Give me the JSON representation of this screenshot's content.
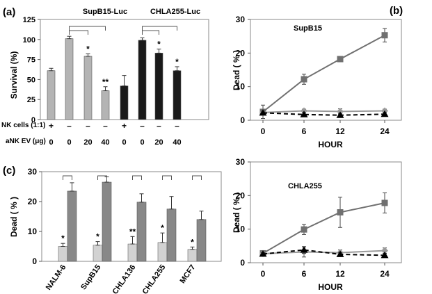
{
  "panels": [
    {
      "label": "(a)"
    },
    {
      "label": "(b)"
    },
    {
      "label": "(c)"
    }
  ],
  "chart_data": [
    {
      "panel": "(a)",
      "type": "bar",
      "groups": [
        "SupB15-Luc",
        "CHLA255-Luc"
      ],
      "ylabel": "Survival (%)",
      "ylim": [
        0,
        125
      ],
      "yticks": [
        0,
        25,
        50,
        75,
        100,
        125
      ],
      "row_labels": [
        "NK cells (1:1)",
        "aNK EV (μg)"
      ],
      "bars": [
        {
          "group": "SupB15-Luc",
          "nk": "+",
          "ev": "0",
          "value": 61,
          "err": 3,
          "color": "#b4b4b4",
          "sig": ""
        },
        {
          "group": "SupB15-Luc",
          "nk": "–",
          "ev": "0",
          "value": 101,
          "err": 3,
          "color": "#b4b4b4",
          "sig": ""
        },
        {
          "group": "SupB15-Luc",
          "nk": "–",
          "ev": "20",
          "value": 79,
          "err": 3,
          "color": "#b4b4b4",
          "sig": "*"
        },
        {
          "group": "SupB15-Luc",
          "nk": "–",
          "ev": "40",
          "value": 36,
          "err": 5,
          "color": "#b4b4b4",
          "sig": "**"
        },
        {
          "group": "CHLA255-Luc",
          "nk": "+",
          "ev": "0",
          "value": 42,
          "err": 13,
          "color": "#1a1a1a",
          "sig": ""
        },
        {
          "group": "CHLA255-Luc",
          "nk": "–",
          "ev": "0",
          "value": 99,
          "err": 3,
          "color": "#1a1a1a",
          "sig": ""
        },
        {
          "group": "CHLA255-Luc",
          "nk": "–",
          "ev": "20",
          "value": 83,
          "err": 5,
          "color": "#1a1a1a",
          "sig": "*"
        },
        {
          "group": "CHLA255-Luc",
          "nk": "–",
          "ev": "40",
          "value": 61,
          "err": 5,
          "color": "#1a1a1a",
          "sig": "*"
        }
      ],
      "brackets": [
        [
          1,
          2
        ],
        [
          1,
          3
        ],
        [
          5,
          6
        ],
        [
          5,
          7
        ]
      ]
    },
    {
      "panel": "(b)",
      "type": "line",
      "annotation": "SupB15",
      "xlabel": "HOUR",
      "ylabel": "Dead ( % )",
      "x": [
        0,
        6,
        12,
        24
      ],
      "ylim": [
        0,
        30
      ],
      "yticks": [
        0,
        10,
        20,
        30
      ],
      "series": [
        {
          "marker": "square",
          "color": "#707070",
          "dash": "",
          "values": [
            2.5,
            12.2,
            18.2,
            25.3
          ],
          "err": [
            2.0,
            1.5,
            0.5,
            2.0
          ]
        },
        {
          "marker": "diamond",
          "color": "#9a9a9a",
          "dash": "",
          "values": [
            2.3,
            2.8,
            2.6,
            2.8
          ],
          "err": [
            0.5,
            0.5,
            0.8,
            0.5
          ]
        },
        {
          "marker": "triangle",
          "color": "#000000",
          "dash": "6,4",
          "values": [
            2.2,
            1.7,
            1.5,
            1.8
          ],
          "err": [
            0.5,
            0.5,
            0.5,
            0.5
          ]
        }
      ]
    },
    {
      "panel": "(b)",
      "type": "line",
      "annotation": "CHLA255",
      "xlabel": "HOUR",
      "ylabel": "Dead ( % )",
      "x": [
        0,
        6,
        12,
        24
      ],
      "ylim": [
        0,
        30
      ],
      "yticks": [
        0,
        10,
        20,
        30
      ],
      "series": [
        {
          "marker": "square",
          "color": "#707070",
          "dash": "",
          "values": [
            2.8,
            9.9,
            15.0,
            17.8
          ],
          "err": [
            0.5,
            1.5,
            4.5,
            3.0
          ]
        },
        {
          "marker": "diamond",
          "color": "#9a9a9a",
          "dash": "",
          "values": [
            2.7,
            3.2,
            3.0,
            3.6
          ],
          "err": [
            0.4,
            1.5,
            0.8,
            0.8
          ]
        },
        {
          "marker": "triangle",
          "color": "#000000",
          "dash": "6,4",
          "values": [
            2.6,
            3.8,
            2.5,
            2.2
          ],
          "err": [
            0.4,
            1.0,
            0.5,
            0.5
          ]
        }
      ]
    },
    {
      "panel": "(c)",
      "type": "bar",
      "ylabel": "Dead  ( % )",
      "ylim": [
        0,
        30
      ],
      "yticks": [
        0,
        10,
        20,
        30
      ],
      "categories": [
        "NALM-6",
        "SupB15",
        "CHLA136",
        "CHLA255",
        "MCF7"
      ],
      "series": [
        {
          "color": "#d2d2d2",
          "values": [
            5.0,
            5.4,
            5.8,
            6.3,
            4.0
          ],
          "err": [
            1.0,
            1.2,
            2.5,
            3.2,
            0.8
          ],
          "sig": [
            "*",
            "*",
            "**",
            "*",
            "*"
          ]
        },
        {
          "color": "#888888",
          "values": [
            23.5,
            26.5,
            19.8,
            17.5,
            14.0
          ],
          "err": [
            2.8,
            1.8,
            2.8,
            4.2,
            2.8
          ]
        }
      ]
    }
  ]
}
